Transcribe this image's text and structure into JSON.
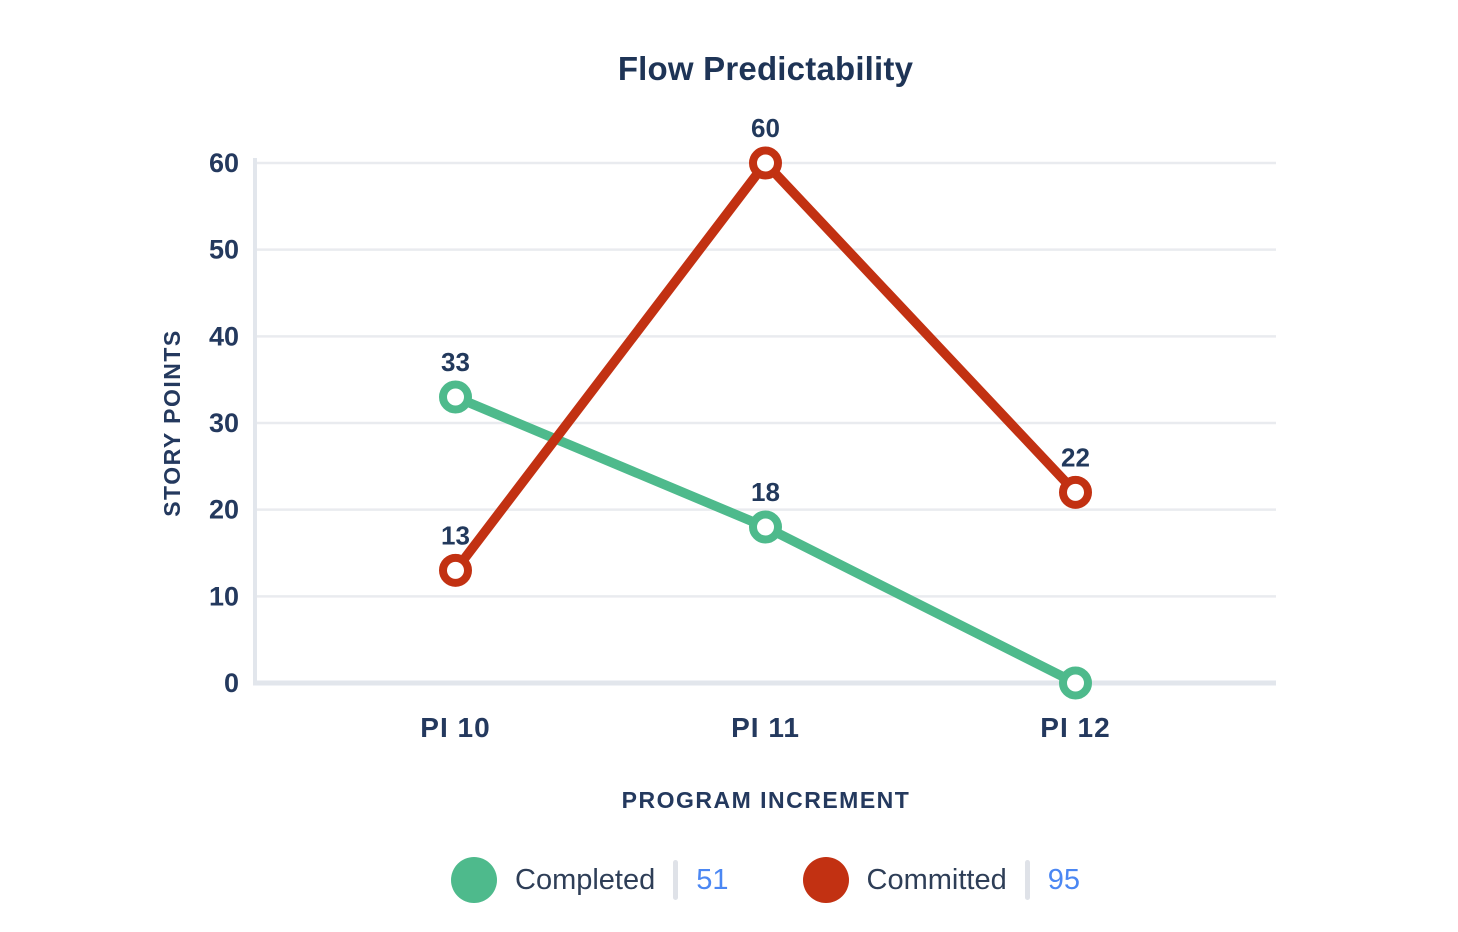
{
  "title": "Flow Predictability",
  "colors": {
    "title_text": "#1e3456",
    "axis_text": "#24395e",
    "gridline": "#e9ebef",
    "axis_line": "#e2e6ec",
    "completed_green": "#4eba8c",
    "committed_red": "#c23112",
    "legend_value_blue": "#4b87f3",
    "legend_divider_gray": "#dfe2e8",
    "background": "#ffffff"
  },
  "chart_data": {
    "type": "line",
    "title": "Flow Predictability",
    "x": [
      "PI 10",
      "PI 11",
      "PI 12"
    ],
    "series": [
      {
        "name": "Completed",
        "values": [
          33,
          18,
          0
        ],
        "color": "#4eba8c",
        "total": 51
      },
      {
        "name": "Committed",
        "values": [
          13,
          60,
          22
        ],
        "color": "#c23112",
        "total": 95
      }
    ],
    "xlabel": "PROGRAM INCREMENT",
    "ylabel": "STORY POINTS",
    "ylim": [
      0,
      60
    ],
    "yticks": [
      0,
      10,
      20,
      30,
      40,
      50,
      60
    ],
    "grid": true,
    "legend_position": "bottom",
    "point_labels": true,
    "hide_zero_point_labels": true,
    "marker_style": "open-circle"
  }
}
